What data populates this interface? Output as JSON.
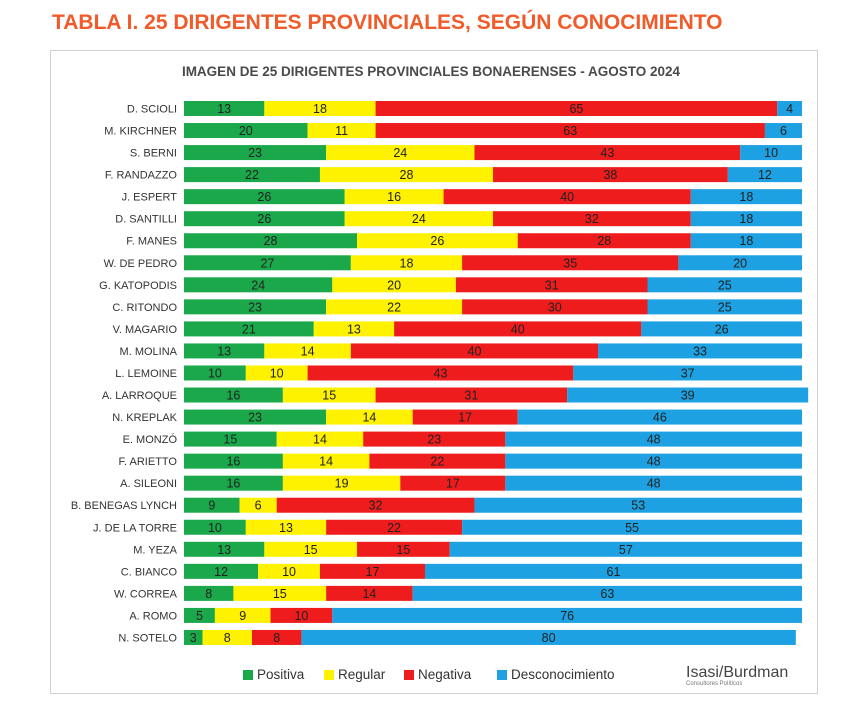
{
  "page": {
    "title": "TABLA I. 25 DIRIGENTES PROVINCIALES, SEGÚN CONOCIMIENTO",
    "brand": "Isasi/Burdman",
    "brand_sub": "Consultores Políticos"
  },
  "colors": {
    "title": "#f15a29",
    "Positiva": "#1aa84a",
    "Regular": "#fff200",
    "Negativa": "#ee1c1c",
    "Desconocimiento": "#1da1e2"
  },
  "chart_data": {
    "type": "bar",
    "orientation": "horizontal",
    "stacked": true,
    "title": "IMAGEN DE 25 DIRIGENTES PROVINCIALES BONAERENSES - AGOSTO 2024",
    "xlim": [
      0,
      100
    ],
    "legend_position": "bottom",
    "categories": [
      "D. SCIOLI",
      "M. KIRCHNER",
      "S. BERNI",
      "F. RANDAZZO",
      "J. ESPERT",
      "D. SANTILLI",
      "F. MANES",
      "W. DE PEDRO",
      "G. KATOPODIS",
      "C. RITONDO",
      "V. MAGARIO",
      "M. MOLINA",
      "L. LEMOINE",
      "A. LARROQUE",
      "N. KREPLAK",
      "E. MONZÓ",
      "F. ARIETTO",
      "A. SILEONI",
      "B. BENEGAS LYNCH",
      "J. DE LA TORRE",
      "M. YEZA",
      "C. BIANCO",
      "W. CORREA",
      "A. ROMO",
      "N. SOTELO"
    ],
    "series": [
      {
        "name": "Positiva",
        "values": [
          13,
          20,
          23,
          22,
          26,
          26,
          28,
          27,
          24,
          23,
          21,
          13,
          10,
          16,
          23,
          15,
          16,
          16,
          9,
          10,
          13,
          12,
          8,
          5,
          3
        ]
      },
      {
        "name": "Regular",
        "values": [
          18,
          11,
          24,
          28,
          16,
          24,
          26,
          18,
          20,
          22,
          13,
          14,
          10,
          15,
          14,
          14,
          14,
          19,
          6,
          13,
          15,
          10,
          15,
          9,
          8
        ]
      },
      {
        "name": "Negativa",
        "values": [
          65,
          63,
          43,
          38,
          40,
          32,
          28,
          35,
          31,
          30,
          40,
          40,
          43,
          31,
          17,
          23,
          22,
          17,
          32,
          22,
          15,
          17,
          14,
          10,
          8
        ]
      },
      {
        "name": "Desconocimiento",
        "values": [
          4,
          6,
          10,
          12,
          18,
          18,
          18,
          20,
          25,
          25,
          26,
          33,
          37,
          39,
          46,
          48,
          48,
          48,
          53,
          55,
          57,
          61,
          63,
          76,
          80
        ]
      }
    ]
  }
}
